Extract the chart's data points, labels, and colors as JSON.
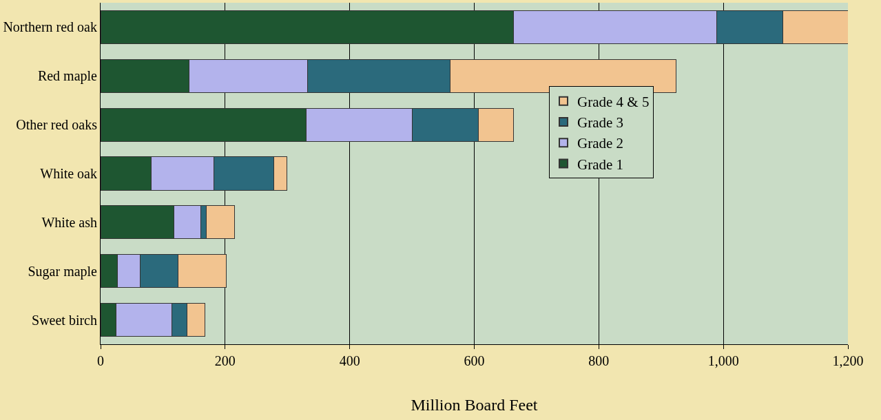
{
  "chart_data": {
    "type": "bar",
    "orientation": "horizontal",
    "stacked": true,
    "xlabel": "Million Board Feet",
    "categories": [
      "Northern red oak",
      "Red maple",
      "Other red oaks",
      "White oak",
      "White ash",
      "Sugar maple",
      "Sweet birch"
    ],
    "series": [
      {
        "name": "Grade 1",
        "color": "#1e5631",
        "values": [
          663,
          142,
          330,
          81,
          118,
          27,
          25
        ]
      },
      {
        "name": "Grade 2",
        "color": "#b3b3ec",
        "values": [
          326,
          190,
          170,
          101,
          43,
          37,
          90
        ]
      },
      {
        "name": "Grade 3",
        "color": "#2b6a7c",
        "values": [
          107,
          229,
          107,
          96,
          9,
          60,
          24
        ]
      },
      {
        "name": "Grade 4 & 5",
        "color": "#f2c490",
        "values": [
          104,
          363,
          56,
          21,
          45,
          78,
          28
        ]
      }
    ],
    "xlim": [
      0,
      1200
    ],
    "xticks": [
      0,
      200,
      400,
      600,
      {
        "value": 800,
        "label": "800"
      },
      {
        "value": 1000,
        "label": "1,000"
      },
      {
        "value": 1200,
        "label": "1,200"
      }
    ],
    "grid": "x",
    "legend": "right"
  }
}
